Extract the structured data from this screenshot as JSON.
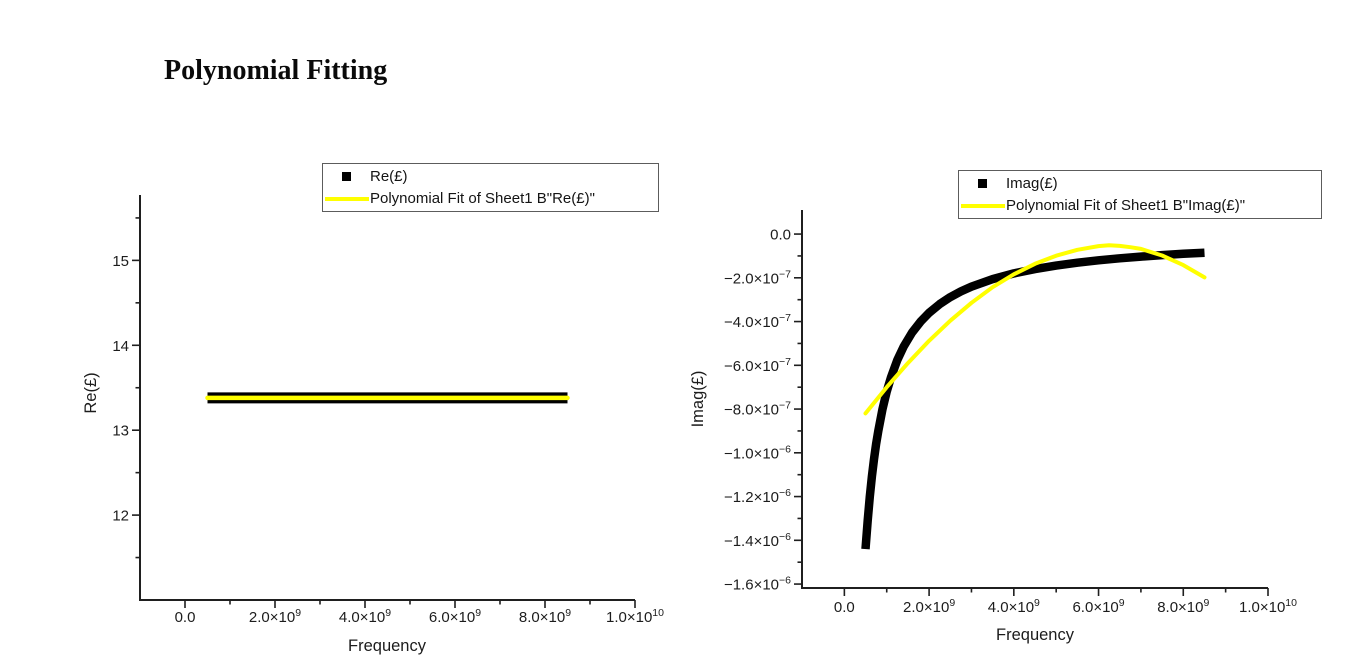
{
  "page": {
    "heading": "Polynomial Fitting",
    "background": "#ffffff"
  },
  "colors": {
    "series_data": "#000000",
    "series_fit": "#ffff00",
    "axis": "#1f1f1f",
    "text": "#1c1c1c"
  },
  "chart_data": [
    {
      "type": "scatter",
      "title": "",
      "xlabel": "Frequency",
      "ylabel": "Re(£)",
      "x_domain": [
        -1000000000.0,
        10000000000.0
      ],
      "y_domain": [
        11.0,
        15.77
      ],
      "grid": false,
      "legend_position": "top-center",
      "x_ticks": [
        {
          "v": 0,
          "label": "0.0"
        },
        {
          "v": 2000000000.0,
          "label": "2.0×10^9"
        },
        {
          "v": 4000000000.0,
          "label": "4.0×10^9"
        },
        {
          "v": 6000000000.0,
          "label": "6.0×10^9"
        },
        {
          "v": 8000000000.0,
          "label": "8.0×10^9"
        },
        {
          "v": 10000000000.0,
          "label": "1.0×10^10"
        }
      ],
      "x_minor_ticks": [
        1000000000.0,
        3000000000.0,
        5000000000.0,
        7000000000.0,
        9000000000.0
      ],
      "y_ticks": [
        {
          "v": 12,
          "label": "12"
        },
        {
          "v": 13,
          "label": "13"
        },
        {
          "v": 14,
          "label": "14"
        },
        {
          "v": 15,
          "label": "15"
        }
      ],
      "y_minor_ticks": [
        11.5,
        12.5,
        13.5,
        14.5,
        15.5
      ],
      "legend": [
        {
          "marker": "square",
          "color": "#000000",
          "label": "Re(£)"
        },
        {
          "marker": "line",
          "color": "#ffff00",
          "label": "Polynomial Fit of Sheet1 B\"Re(£)\""
        }
      ],
      "series": [
        {
          "name": "Re(£)",
          "role": "data",
          "x": [
            500000000.0,
            1000000000.0,
            1500000000.0,
            2000000000.0,
            2500000000.0,
            3000000000.0,
            3500000000.0,
            4000000000.0,
            4500000000.0,
            5000000000.0,
            5500000000.0,
            6000000000.0,
            6500000000.0,
            7000000000.0,
            7500000000.0,
            8000000000.0,
            8500000000.0
          ],
          "y": [
            13.38,
            13.38,
            13.38,
            13.38,
            13.38,
            13.38,
            13.38,
            13.38,
            13.38,
            13.38,
            13.38,
            13.38,
            13.38,
            13.38,
            13.38,
            13.38,
            13.38
          ]
        },
        {
          "name": "Polynomial Fit of Sheet1 B\"Re(£)\"",
          "role": "fit",
          "x": [
            500000000.0,
            8500000000.0
          ],
          "y": [
            13.38,
            13.38
          ]
        }
      ]
    },
    {
      "type": "scatter",
      "title": "",
      "xlabel": "Frequency",
      "ylabel": "Imag(£)",
      "x_domain": [
        -1000000000.0,
        10000000000.0
      ],
      "y_domain": [
        -1.618e-06,
        1.1e-07
      ],
      "grid": false,
      "legend_position": "top-center",
      "x_ticks": [
        {
          "v": 0,
          "label": "0.0"
        },
        {
          "v": 2000000000.0,
          "label": "2.0×10^9"
        },
        {
          "v": 4000000000.0,
          "label": "4.0×10^9"
        },
        {
          "v": 6000000000.0,
          "label": "6.0×10^9"
        },
        {
          "v": 8000000000.0,
          "label": "8.0×10^9"
        },
        {
          "v": 10000000000.0,
          "label": "1.0×10^10"
        }
      ],
      "x_minor_ticks": [
        1000000000.0,
        3000000000.0,
        5000000000.0,
        7000000000.0,
        9000000000.0
      ],
      "y_ticks": [
        {
          "v": 0,
          "label": "0.0"
        },
        {
          "v": -2e-07,
          "label": "−2.0×10^−7"
        },
        {
          "v": -4e-07,
          "label": "−4.0×10^−7"
        },
        {
          "v": -6e-07,
          "label": "−6.0×10^−7"
        },
        {
          "v": -8e-07,
          "label": "−8.0×10^−7"
        },
        {
          "v": -1e-06,
          "label": "−1.0×10^−6"
        },
        {
          "v": -1.2e-06,
          "label": "−1.2×10^−6"
        },
        {
          "v": -1.4e-06,
          "label": "−1.4×10^−6"
        },
        {
          "v": -1.6e-06,
          "label": "−1.6×10^−6"
        }
      ],
      "y_minor_ticks": [
        -1e-07,
        -3e-07,
        -5e-07,
        -7e-07,
        -9e-07,
        -1.1e-06,
        -1.3e-06,
        -1.5e-06
      ],
      "legend": [
        {
          "marker": "square",
          "color": "#000000",
          "label": "Imag(£)"
        },
        {
          "marker": "line",
          "color": "#ffff00",
          "label": "Polynomial Fit of Sheet1 B\"Imag(£)\""
        }
      ],
      "series": [
        {
          "name": "Imag(£)",
          "role": "data",
          "x": [
            500000000.0,
            550000000.0,
            600000000.0,
            650000000.0,
            700000000.0,
            750000000.0,
            800000000.0,
            900000000.0,
            1000000000.0,
            1100000000.0,
            1250000000.0,
            1400000000.0,
            1600000000.0,
            1800000000.0,
            2000000000.0,
            2250000000.0,
            2500000000.0,
            2750000000.0,
            3000000000.0,
            3500000000.0,
            4000000000.0,
            4500000000.0,
            5000000000.0,
            5500000000.0,
            6000000000.0,
            6500000000.0,
            7000000000.0,
            7500000000.0,
            8000000000.0,
            8500000000.0
          ],
          "y": [
            -1.44e-06,
            -1.31e-06,
            -1.2e-06,
            -1.108e-06,
            -1.029e-06,
            -9.6e-07,
            -9e-07,
            -8e-07,
            -7.2e-07,
            -6.55e-07,
            -5.76e-07,
            -5.14e-07,
            -4.5e-07,
            -4e-07,
            -3.6e-07,
            -3.2e-07,
            -2.88e-07,
            -2.62e-07,
            -2.4e-07,
            -2.06e-07,
            -1.8e-07,
            -1.6e-07,
            -1.44e-07,
            -1.31e-07,
            -1.2e-07,
            -1.11e-07,
            -1.03e-07,
            -9.6e-08,
            -9e-08,
            -8.5e-08
          ]
        },
        {
          "name": "Polynomial Fit of Sheet1 B\"Imag(£)\"",
          "role": "fit",
          "x": [
            500000000.0,
            1000000000.0,
            1500000000.0,
            2000000000.0,
            2500000000.0,
            3000000000.0,
            3500000000.0,
            4000000000.0,
            4500000000.0,
            5000000000.0,
            5500000000.0,
            6000000000.0,
            6250000000.0,
            6500000000.0,
            6750000000.0,
            7000000000.0,
            7500000000.0,
            8000000000.0,
            8500000000.0
          ],
          "y": [
            -8.2e-07,
            -7e-07,
            -5.9e-07,
            -4.88e-07,
            -3.96e-07,
            -3.14e-07,
            -2.43e-07,
            -1.84e-07,
            -1.36e-07,
            -9.9e-08,
            -7.2e-08,
            -5.5e-08,
            -5.1e-08,
            -5.4e-08,
            -6e-08,
            -6.8e-08,
            -9.8e-08,
            -1.42e-07,
            -1.98e-07
          ]
        }
      ]
    }
  ]
}
